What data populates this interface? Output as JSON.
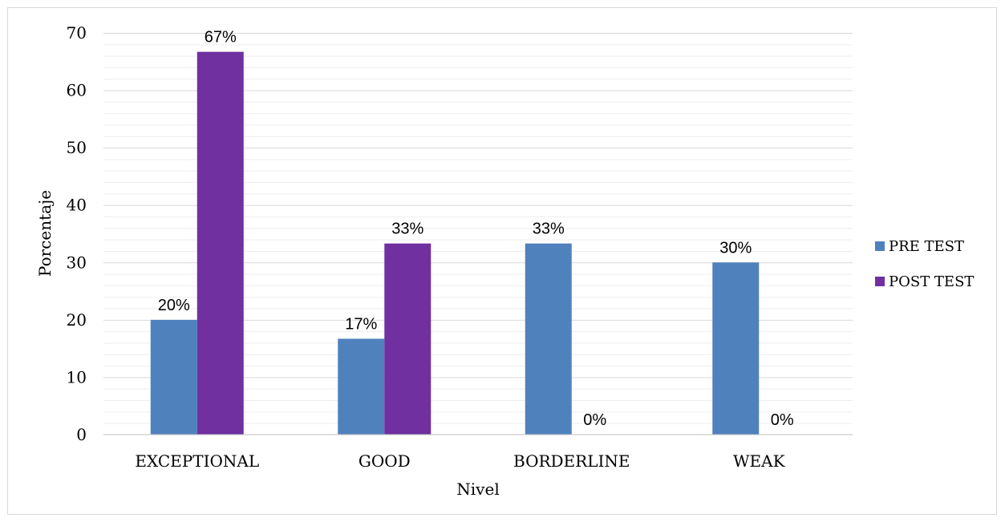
{
  "chart_data": {
    "type": "bar",
    "categories": [
      "EXCEPTIONAL",
      "GOOD",
      "BORDERLINE",
      "WEAK"
    ],
    "series": [
      {
        "name": "PRE TEST",
        "values": [
          20,
          16.7,
          33.3,
          30
        ],
        "labels": [
          "20%",
          "17%",
          "33%",
          "30%"
        ],
        "color": "#4f81bd"
      },
      {
        "name": "POST TEST",
        "values": [
          66.7,
          33.3,
          0,
          0
        ],
        "labels": [
          "67%",
          "33%",
          "0%",
          "0%"
        ],
        "color": "#7030a0"
      }
    ],
    "xlabel": "Nivel",
    "ylabel": "Porcentaje",
    "ylim": [
      0,
      70
    ],
    "yticks": [
      "0",
      "10",
      "20",
      "30",
      "40",
      "50",
      "60",
      "70"
    ],
    "grid": true,
    "minor_grid": true,
    "legend_position": "right",
    "grid_color": "#d9d9d9",
    "minor_grid_color": "#eeeeee"
  }
}
